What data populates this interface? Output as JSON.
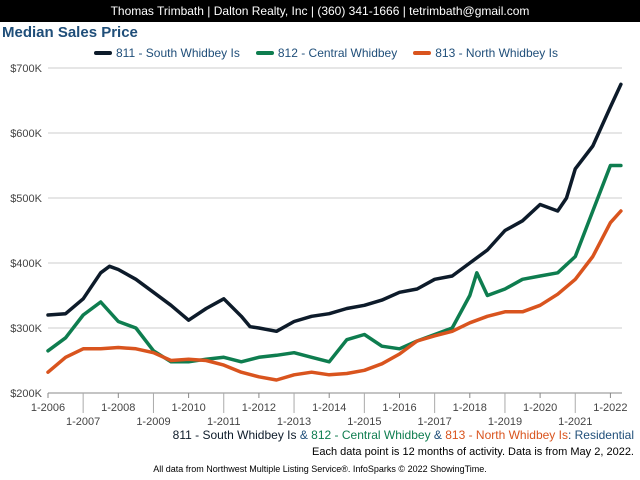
{
  "header": {
    "text": "Thomas Trimbath | Dalton Realty, Inc | (360) 341-1666 | tetrimbath@gmail.com"
  },
  "chart_data": {
    "type": "line",
    "title": "Median Sales Price",
    "ylim": [
      200000,
      700000
    ],
    "y_ticks": [
      200000,
      300000,
      400000,
      500000,
      600000,
      700000
    ],
    "y_tick_labels": [
      "$200K",
      "$300K",
      "$400K",
      "$500K",
      "$600K",
      "$700K"
    ],
    "x_range": [
      2006.0,
      2022.33
    ],
    "x_ticks_top": [
      {
        "x": 2006,
        "label": "1-2006"
      },
      {
        "x": 2008,
        "label": "1-2008"
      },
      {
        "x": 2010,
        "label": "1-2010"
      },
      {
        "x": 2012,
        "label": "1-2012"
      },
      {
        "x": 2014,
        "label": "1-2014"
      },
      {
        "x": 2016,
        "label": "1-2016"
      },
      {
        "x": 2018,
        "label": "1-2018"
      },
      {
        "x": 2020,
        "label": "1-2020"
      },
      {
        "x": 2022,
        "label": "1-2022"
      }
    ],
    "x_ticks_bottom": [
      {
        "x": 2007,
        "label": "1-2007"
      },
      {
        "x": 2009,
        "label": "1-2009"
      },
      {
        "x": 2011,
        "label": "1-2011"
      },
      {
        "x": 2013,
        "label": "1-2013"
      },
      {
        "x": 2015,
        "label": "1-2015"
      },
      {
        "x": 2017,
        "label": "1-2017"
      },
      {
        "x": 2019,
        "label": "1-2019"
      },
      {
        "x": 2021,
        "label": "1-2021"
      }
    ],
    "grid": true,
    "legend_position": "top",
    "series": [
      {
        "name": "811 - South Whidbey Is",
        "color": "#0d1b2a",
        "points": [
          [
            2006.0,
            320000
          ],
          [
            2006.5,
            322000
          ],
          [
            2007.0,
            345000
          ],
          [
            2007.5,
            385000
          ],
          [
            2007.75,
            395000
          ],
          [
            2008.0,
            390000
          ],
          [
            2008.5,
            375000
          ],
          [
            2009.0,
            355000
          ],
          [
            2009.5,
            335000
          ],
          [
            2010.0,
            312000
          ],
          [
            2010.5,
            330000
          ],
          [
            2011.0,
            345000
          ],
          [
            2011.5,
            318000
          ],
          [
            2011.75,
            302000
          ],
          [
            2012.0,
            300000
          ],
          [
            2012.5,
            295000
          ],
          [
            2013.0,
            310000
          ],
          [
            2013.5,
            318000
          ],
          [
            2014.0,
            322000
          ],
          [
            2014.5,
            330000
          ],
          [
            2015.0,
            335000
          ],
          [
            2015.5,
            343000
          ],
          [
            2016.0,
            355000
          ],
          [
            2016.5,
            360000
          ],
          [
            2017.0,
            375000
          ],
          [
            2017.5,
            380000
          ],
          [
            2018.0,
            400000
          ],
          [
            2018.5,
            420000
          ],
          [
            2019.0,
            450000
          ],
          [
            2019.5,
            465000
          ],
          [
            2020.0,
            490000
          ],
          [
            2020.5,
            480000
          ],
          [
            2020.75,
            500000
          ],
          [
            2021.0,
            545000
          ],
          [
            2021.5,
            580000
          ],
          [
            2022.0,
            640000
          ],
          [
            2022.3,
            675000
          ]
        ]
      },
      {
        "name": "812 - Central Whidbey",
        "color": "#0e7d4f",
        "points": [
          [
            2006.0,
            265000
          ],
          [
            2006.5,
            285000
          ],
          [
            2007.0,
            320000
          ],
          [
            2007.5,
            340000
          ],
          [
            2008.0,
            310000
          ],
          [
            2008.5,
            300000
          ],
          [
            2009.0,
            265000
          ],
          [
            2009.5,
            248000
          ],
          [
            2010.0,
            248000
          ],
          [
            2010.5,
            252000
          ],
          [
            2011.0,
            255000
          ],
          [
            2011.5,
            248000
          ],
          [
            2012.0,
            255000
          ],
          [
            2012.5,
            258000
          ],
          [
            2013.0,
            262000
          ],
          [
            2013.5,
            255000
          ],
          [
            2014.0,
            248000
          ],
          [
            2014.5,
            282000
          ],
          [
            2015.0,
            290000
          ],
          [
            2015.5,
            272000
          ],
          [
            2016.0,
            268000
          ],
          [
            2016.5,
            280000
          ],
          [
            2017.0,
            290000
          ],
          [
            2017.5,
            300000
          ],
          [
            2018.0,
            350000
          ],
          [
            2018.2,
            385000
          ],
          [
            2018.5,
            350000
          ],
          [
            2019.0,
            360000
          ],
          [
            2019.5,
            375000
          ],
          [
            2020.0,
            380000
          ],
          [
            2020.5,
            385000
          ],
          [
            2021.0,
            410000
          ],
          [
            2021.5,
            480000
          ],
          [
            2022.0,
            550000
          ],
          [
            2022.3,
            550000
          ]
        ]
      },
      {
        "name": "813 - North Whidbey Is",
        "color": "#d9541e",
        "points": [
          [
            2006.0,
            232000
          ],
          [
            2006.5,
            255000
          ],
          [
            2007.0,
            268000
          ],
          [
            2007.5,
            268000
          ],
          [
            2008.0,
            270000
          ],
          [
            2008.5,
            268000
          ],
          [
            2009.0,
            262000
          ],
          [
            2009.5,
            250000
          ],
          [
            2010.0,
            252000
          ],
          [
            2010.5,
            250000
          ],
          [
            2011.0,
            243000
          ],
          [
            2011.5,
            232000
          ],
          [
            2012.0,
            225000
          ],
          [
            2012.5,
            220000
          ],
          [
            2013.0,
            228000
          ],
          [
            2013.5,
            232000
          ],
          [
            2014.0,
            228000
          ],
          [
            2014.5,
            230000
          ],
          [
            2015.0,
            235000
          ],
          [
            2015.5,
            245000
          ],
          [
            2016.0,
            260000
          ],
          [
            2016.5,
            280000
          ],
          [
            2017.0,
            288000
          ],
          [
            2017.5,
            295000
          ],
          [
            2018.0,
            308000
          ],
          [
            2018.5,
            318000
          ],
          [
            2019.0,
            325000
          ],
          [
            2019.5,
            325000
          ],
          [
            2020.0,
            335000
          ],
          [
            2020.5,
            352000
          ],
          [
            2021.0,
            375000
          ],
          [
            2021.5,
            410000
          ],
          [
            2022.0,
            462000
          ],
          [
            2022.3,
            480000
          ]
        ]
      }
    ]
  },
  "subtitle": {
    "part1": "811 - South Whidbey Is",
    "amp1": " & ",
    "part2": "812 - Central Whidbey",
    "amp2": " & ",
    "part3": "813 - North Whidbey Is",
    "suffix": ": Residential"
  },
  "note": "Each data point is 12 months of activity. Data is from May 2, 2022.",
  "footer": "All data from Northwest Multiple Listing Service®. InfoSparks © 2022 ShowingTime.",
  "colors": {
    "title": "#1f4e79",
    "s1": "#0d1b2a",
    "s2": "#0e7d4f",
    "s3": "#d9541e",
    "accent_blue": "#1f4e79"
  }
}
